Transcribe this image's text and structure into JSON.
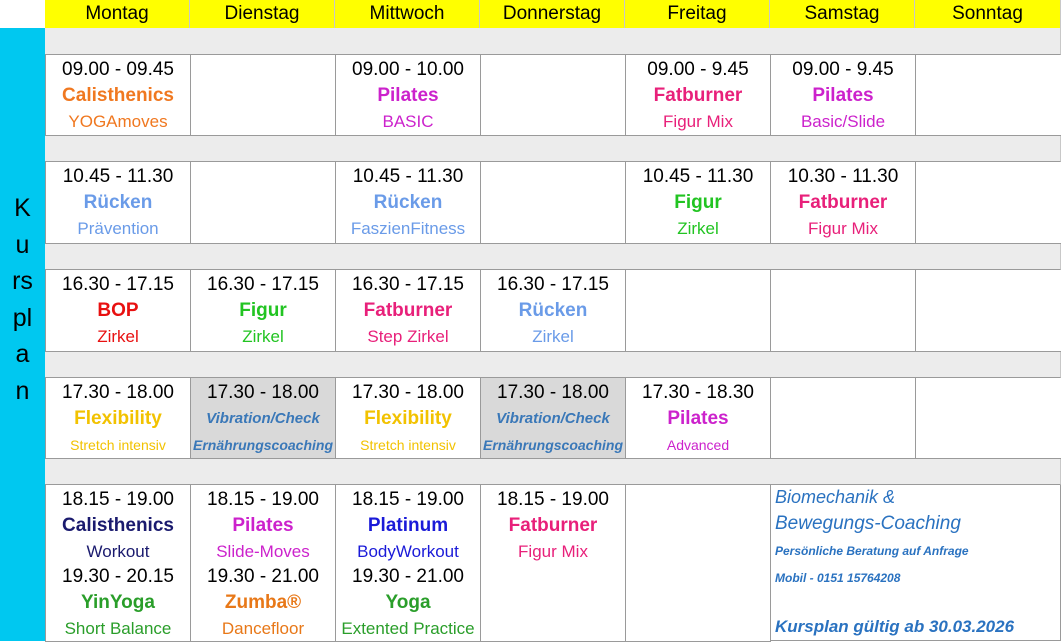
{
  "schedule": {
    "days": [
      "Montag",
      "Dienstag",
      "Mittwoch",
      "Donnerstag",
      "Freitag",
      "Samstag",
      "Sonntag"
    ],
    "side_label": "Kursplan",
    "blocks": [
      [
        {
          "time": "09.00 - 09.45",
          "title": "Calisthenics",
          "subtitle": "YOGAmoves",
          "color": "#f07820"
        },
        null,
        {
          "time": "09.00 - 10.00",
          "title": "Pilates",
          "subtitle": "BASIC",
          "color": "#cc22cc"
        },
        null,
        {
          "time": "09.00 - 9.45",
          "title": "Fatburner",
          "subtitle": "Figur Mix",
          "color": "#e8207a"
        },
        {
          "time": "09.00 - 9.45",
          "title": "Pilates",
          "subtitle": "Basic/Slide",
          "color": "#cc22cc"
        },
        null
      ],
      [
        {
          "time": "10.45 - 11.30",
          "title": "Rücken",
          "subtitle": "Prävention",
          "color": "#6a9be8"
        },
        null,
        {
          "time": "10.45 - 11.30",
          "title": "Rücken",
          "subtitle": "FaszienFitness",
          "color": "#6a9be8"
        },
        null,
        {
          "time": "10.45 - 11.30",
          "title": "Figur",
          "subtitle": "Zirkel",
          "color": "#22c422"
        },
        {
          "time": "10.30 - 11.30",
          "title": "Fatburner",
          "subtitle": "Figur Mix",
          "color": "#e8207a"
        },
        null
      ],
      [
        {
          "time": "16.30 - 17.15",
          "title": "BOP",
          "subtitle": "Zirkel",
          "color": "#e81010"
        },
        {
          "time": "16.30 - 17.15",
          "title": "Figur",
          "subtitle": "Zirkel",
          "color": "#22c422"
        },
        {
          "time": "16.30 - 17.15",
          "title": "Fatburner",
          "subtitle": "Step Zirkel",
          "color": "#e8207a"
        },
        {
          "time": "16.30 - 17.15",
          "title": "Rücken",
          "subtitle": "Zirkel",
          "color": "#6a9be8"
        },
        null,
        null,
        null
      ],
      [
        {
          "time": "17.30 - 18.00",
          "title": "Flexibility",
          "subtitle": "Stretch intensiv",
          "color": "#f2c200"
        },
        {
          "time": "17.30 - 18.00",
          "title": "Vibration/Check",
          "subtitle": "Ernährungscoaching",
          "color": "#3a78b8",
          "background": "#d9d9d9",
          "italic": true
        },
        {
          "time": "17.30 - 18.00",
          "title": "Flexibility",
          "subtitle": "Stretch intensiv",
          "color": "#f2c200"
        },
        {
          "time": "17.30 - 18.00",
          "title": "Vibration/Check",
          "subtitle": "Ernährungscoaching",
          "color": "#3a78b8",
          "background": "#d9d9d9",
          "italic": true
        },
        {
          "time": "17.30 - 18.30",
          "title": "Pilates",
          "subtitle": "Advanced",
          "color": "#cc22cc"
        },
        null,
        null
      ],
      [
        {
          "time": "18.15 - 19.00",
          "title": "Calisthenics",
          "subtitle": "Workout",
          "color": "#1a1a6e"
        },
        {
          "time": "18.15 - 19.00",
          "title": "Pilates",
          "subtitle": "Slide-Moves",
          "color": "#cc22cc"
        },
        {
          "time": "18.15 - 19.00",
          "title": "Platinum",
          "subtitle": "BodyWorkout",
          "color": "#1a1ad8"
        },
        {
          "time": "18.15 - 19.00",
          "title": "Fatburner",
          "subtitle": "Figur Mix",
          "color": "#e8207a"
        },
        null
      ],
      [
        {
          "time": "19.30 - 20.15",
          "title": "YinYoga",
          "subtitle": "Short Balance",
          "color": "#2a9e2a"
        },
        {
          "time": "19.30 - 21.00",
          "title": "Zumba®",
          "subtitle": "Dancefloor",
          "color": "#e87818"
        },
        {
          "time": "19.30 - 21.00",
          "title": "Yoga",
          "subtitle": "Extented Practice",
          "color": "#2a9e2a"
        },
        null,
        null
      ]
    ],
    "note": {
      "line1": "Biomechanik &",
      "line2": "Bewegungs-Coaching",
      "line3": "Persönliche Beratung auf Anfrage",
      "line4": "Mobil -  0151 15764208",
      "line5": "Kursplan gültig ab 30.03.2026",
      "color": "#2a72c0"
    }
  }
}
